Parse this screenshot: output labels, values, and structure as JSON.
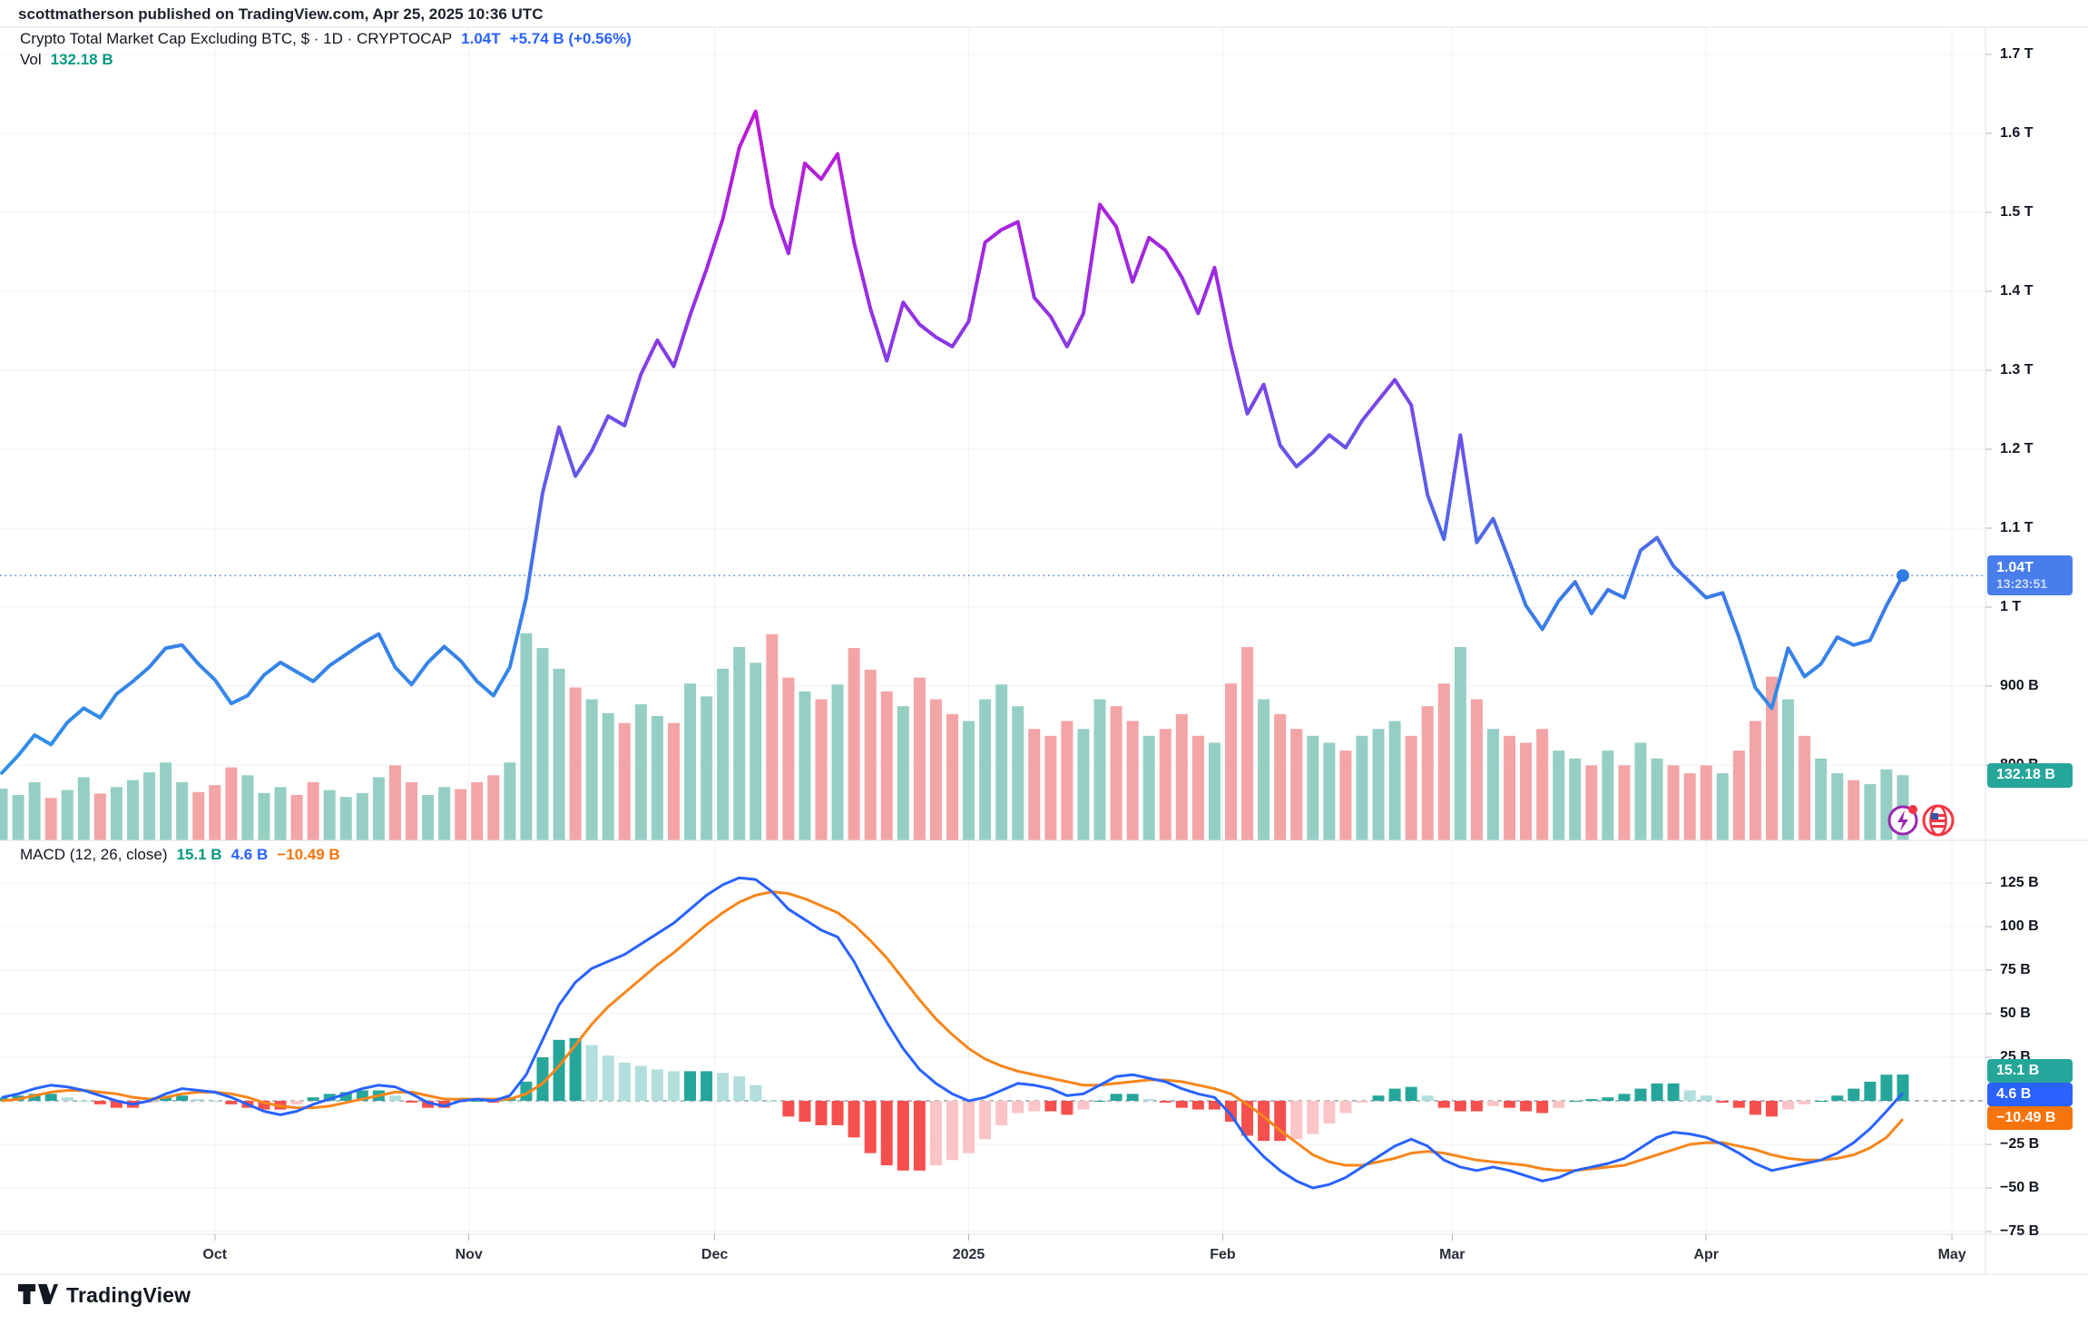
{
  "header": {
    "text": "scottmatherson published on TradingView.com, Apr 25, 2025 10:36 UTC"
  },
  "legend": {
    "title": "Crypto Total Market Cap Excluding BTC, $ · 1D · CRYPTOCAP",
    "value": "1.04T",
    "change": "+5.74 B (+0.56%)",
    "vol_label": "Vol",
    "vol_value": "132.18 B"
  },
  "macd_legend": {
    "title": "MACD (12, 26, close)",
    "hist_value": "15.1 B",
    "macd_value": "4.6 B",
    "signal_value": "−10.49 B"
  },
  "labels": {
    "price": {
      "value": "1.04T",
      "countdown": "13:23:51"
    },
    "volume": "132.18 B",
    "macd_hist": "15.1 B",
    "macd_line": "4.6 B",
    "macd_signal": "−10.49 B"
  },
  "logo": {
    "text": "TradingView"
  },
  "colors": {
    "accent_blue": "#2962ff",
    "teal": "#26a69a",
    "label_blue": "#4a7dec",
    "label_orange": "#f7740c",
    "line_gradient": [
      "#c318d2",
      "#9b2be0",
      "#6a53e8",
      "#3b7be8",
      "#2e93e6"
    ],
    "vol_up": "#95cfc4",
    "vol_down": "#f3a4a7",
    "hist_grow_up": "#26a69a",
    "hist_fall_up": "#b2dfdb",
    "hist_grow_down": "#f5504e",
    "hist_fall_down": "#fbc4c6",
    "macd_line": "#2962ff",
    "signal_line": "#f7861b",
    "grid": "#f0f2f5",
    "frame": "#e0e3eb",
    "dot_blue": "#2e7ce4",
    "badge_purple": "#9c27b0",
    "badge_red": "#f23645",
    "flag_blue": "#3457a3"
  },
  "chart_data": {
    "type": "multi-panel line + volume bars + MACD",
    "x_axis": "daily, day 0 = 2024-09-05, values sampled every 2 days through 2025-04-25 (day 232)",
    "day_step": 2,
    "months": [
      {
        "label": "Oct",
        "day": 26,
        "year": false
      },
      {
        "label": "Nov",
        "day": 57,
        "year": false
      },
      {
        "label": "Dec",
        "day": 87,
        "year": false
      },
      {
        "label": "2025",
        "day": 118,
        "year": true
      },
      {
        "label": "Feb",
        "day": 149,
        "year": false
      },
      {
        "label": "Mar",
        "day": 177,
        "year": false
      },
      {
        "label": "Apr",
        "day": 208,
        "year": false
      },
      {
        "label": "May",
        "day": 238,
        "year": false
      }
    ],
    "price": {
      "type": "line",
      "name": "Crypto Total Market Cap Excluding BTC (CRYPTOCAP), billions USD",
      "current": 1040,
      "ylim": [
        780,
        1730
      ],
      "values": [
        790,
        812,
        838,
        826,
        854,
        872,
        860,
        890,
        906,
        924,
        948,
        952,
        928,
        908,
        878,
        888,
        914,
        930,
        918,
        906,
        926,
        940,
        954,
        966,
        924,
        902,
        930,
        950,
        932,
        906,
        888,
        924,
        1012,
        1145,
        1228,
        1166,
        1198,
        1242,
        1230,
        1295,
        1338,
        1305,
        1370,
        1428,
        1492,
        1582,
        1628,
        1508,
        1448,
        1562,
        1542,
        1574,
        1462,
        1378,
        1312,
        1386,
        1358,
        1342,
        1330,
        1362,
        1462,
        1478,
        1488,
        1392,
        1368,
        1330,
        1372,
        1510,
        1482,
        1412,
        1468,
        1452,
        1418,
        1372,
        1430,
        1330,
        1245,
        1282,
        1205,
        1178,
        1196,
        1218,
        1202,
        1236,
        1262,
        1288,
        1256,
        1142,
        1086,
        1218,
        1082,
        1112,
        1058,
        1002,
        972,
        1008,
        1032,
        992,
        1022,
        1012,
        1072,
        1088,
        1052,
        1032,
        1012,
        1018,
        962,
        898,
        872,
        948,
        912,
        928,
        962,
        952,
        958,
        1002,
        1040
      ]
    },
    "volume": {
      "type": "bar",
      "name": "Volume, billions USD (green = up day, red = down day)",
      "current": 132.18,
      "values": [
        105,
        92,
        118,
        86,
        102,
        128,
        95,
        108,
        122,
        138,
        158,
        118,
        98,
        112,
        148,
        132,
        96,
        108,
        92,
        118,
        102,
        88,
        96,
        128,
        152,
        118,
        92,
        108,
        104,
        118,
        132,
        158,
        420,
        390,
        348,
        310,
        286,
        258,
        238,
        276,
        252,
        238,
        318,
        292,
        348,
        392,
        360,
        418,
        330,
        302,
        286,
        316,
        390,
        346,
        302,
        272,
        330,
        286,
        256,
        242,
        286,
        316,
        272,
        226,
        212,
        242,
        226,
        286,
        272,
        242,
        212,
        226,
        256,
        212,
        198,
        318,
        392,
        286,
        256,
        226,
        212,
        198,
        182,
        212,
        226,
        242,
        212,
        272,
        318,
        392,
        286,
        226,
        212,
        198,
        226,
        182,
        166,
        152,
        182,
        152,
        198,
        166,
        152,
        136,
        152,
        136,
        182,
        242,
        332,
        286,
        212,
        166,
        136,
        122,
        114,
        144,
        132.18
      ]
    },
    "macd": {
      "type": "line",
      "name": "MACD line (12, 26, close), billions USD",
      "current": 4.6,
      "ylim": [
        -85,
        150
      ],
      "values": [
        2,
        4,
        7,
        9,
        8,
        6,
        3,
        0,
        -2,
        0,
        4,
        7,
        6,
        5,
        2,
        -2,
        -6,
        -8,
        -6,
        -2,
        1,
        4,
        7,
        9,
        8,
        4,
        -1,
        -3,
        0,
        1,
        0,
        3,
        15,
        35,
        55,
        68,
        76,
        80,
        84,
        90,
        96,
        102,
        110,
        118,
        124,
        128,
        127,
        120,
        110,
        104,
        98,
        94,
        80,
        62,
        45,
        30,
        18,
        10,
        4,
        0,
        2,
        6,
        10,
        9,
        7,
        3,
        4,
        9,
        14,
        15,
        13,
        11,
        7,
        4,
        2,
        -8,
        -22,
        -32,
        -40,
        -46,
        -50,
        -48,
        -44,
        -38,
        -32,
        -26,
        -22,
        -26,
        -34,
        -38,
        -40,
        -38,
        -40,
        -43,
        -46,
        -44,
        -40,
        -38,
        -36,
        -33,
        -27,
        -21,
        -18,
        -19,
        -21,
        -25,
        -30,
        -36,
        -40,
        -38,
        -36,
        -34,
        -30,
        -24,
        -16,
        -6,
        4.6
      ]
    },
    "macd_signal": {
      "type": "line",
      "name": "MACD signal line, billions USD",
      "current": -10.49,
      "values": [
        0,
        1,
        3,
        5,
        6,
        6,
        5,
        4,
        2,
        1,
        2,
        4,
        5,
        5,
        4,
        2,
        -1,
        -3,
        -4,
        -4,
        -3,
        -1,
        1,
        3,
        5,
        5,
        3,
        1,
        1,
        1,
        1,
        1,
        4,
        10,
        20,
        32,
        44,
        54,
        62,
        70,
        78,
        85,
        93,
        101,
        108,
        114,
        118,
        120,
        119,
        116,
        112,
        108,
        101,
        92,
        82,
        70,
        58,
        47,
        38,
        30,
        24,
        20,
        17,
        15,
        13,
        11,
        9,
        9,
        10,
        11,
        12,
        12,
        11,
        9,
        7,
        4,
        -2,
        -9,
        -17,
        -24,
        -31,
        -35,
        -37,
        -37,
        -35,
        -33,
        -30,
        -29,
        -30,
        -32,
        -34,
        -35,
        -36,
        -37,
        -39,
        -40,
        -40,
        -39,
        -38,
        -37,
        -34,
        -31,
        -28,
        -25,
        -24,
        -24,
        -26,
        -28,
        -31,
        -33,
        -34,
        -34,
        -33,
        -31,
        -27,
        -21,
        -10.49
      ]
    },
    "macd_hist": {
      "type": "bar",
      "name": "MACD histogram = MACD − signal, billions USD",
      "current": 15.1,
      "derived_from": "macd minus macd_signal"
    },
    "price_axis_ticks": [
      {
        "label": "1.7 T",
        "value": 1700
      },
      {
        "label": "1.6 T",
        "value": 1600
      },
      {
        "label": "1.5 T",
        "value": 1500
      },
      {
        "label": "1.4 T",
        "value": 1400
      },
      {
        "label": "1.3 T",
        "value": 1300
      },
      {
        "label": "1.2 T",
        "value": 1200
      },
      {
        "label": "1.1 T",
        "value": 1100
      },
      {
        "label": "1 T",
        "value": 1000
      },
      {
        "label": "900 B",
        "value": 900
      },
      {
        "label": "800 B",
        "value": 800
      }
    ],
    "macd_axis_ticks": [
      {
        "label": "125 B",
        "value": 125
      },
      {
        "label": "100 B",
        "value": 100
      },
      {
        "label": "75 B",
        "value": 75
      },
      {
        "label": "50 B",
        "value": 50
      },
      {
        "label": "25 B",
        "value": 25
      },
      {
        "label": "−25 B",
        "value": -25
      },
      {
        "label": "−50 B",
        "value": -50
      },
      {
        "label": "−75 B",
        "value": -75
      }
    ],
    "legend_position": "top-left of each pane",
    "grid": true
  }
}
